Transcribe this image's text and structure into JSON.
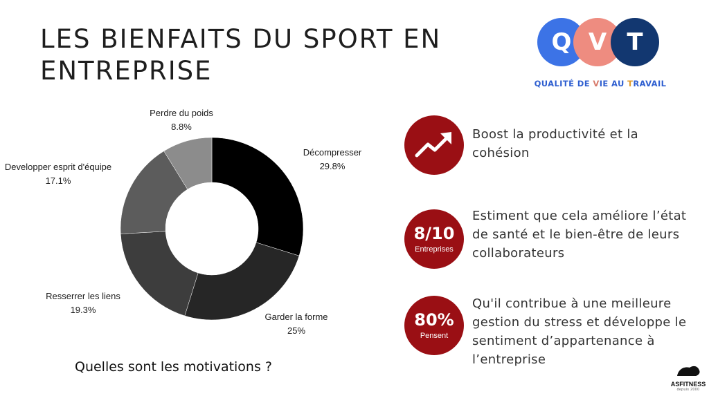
{
  "title": "LES BIENFAITS DU SPORT EN ENTREPRISE",
  "logo": {
    "letters": [
      "Q",
      "V",
      "T"
    ],
    "circle_colors": [
      "#3c73e6",
      "#ee8c80",
      "#123770"
    ],
    "tagline_parts": [
      {
        "text": "QUALITÉ DE ",
        "color": "b"
      },
      {
        "text": "V",
        "color": "r"
      },
      {
        "text": "IE AU ",
        "color": "b"
      },
      {
        "text": "T",
        "color": "o"
      },
      {
        "text": "RAVAIL",
        "color": "b"
      }
    ]
  },
  "chart_data": {
    "type": "pie",
    "donut": true,
    "categories": [
      "Décompresser",
      "Garder la forme",
      "Resserrer les liens",
      "Developper esprit d'équipe",
      "Perdre du poids"
    ],
    "values": [
      29.8,
      25,
      19.3,
      17.1,
      8.8
    ],
    "value_labels": [
      "29.8%",
      "25%",
      "19.3%",
      "17.1%",
      "8.8%"
    ],
    "colors": [
      "#000000",
      "#262626",
      "#3d3d3d",
      "#5c5c5c",
      "#8c8c8c"
    ],
    "start": "top, clockwise"
  },
  "chart_question": "Quelles sont les motivations ?",
  "stats": [
    {
      "icon": "trend-up-icon",
      "big": "",
      "small": "",
      "text": "Boost la productivité et la cohésion"
    },
    {
      "icon": "",
      "big": "8/10",
      "small": "Entreprises",
      "text": "Estiment que cela améliore l’état de santé et le bien-être de leurs collaborateurs"
    },
    {
      "icon": "",
      "big": "80%",
      "small": "Pensent",
      "text": "Qu'il contribue à une meilleure gestion du stress et développe le sentiment d’appartenance à l’entreprise"
    }
  ],
  "brand": {
    "name": "ASFITNESS",
    "since": "depuis 2000"
  }
}
